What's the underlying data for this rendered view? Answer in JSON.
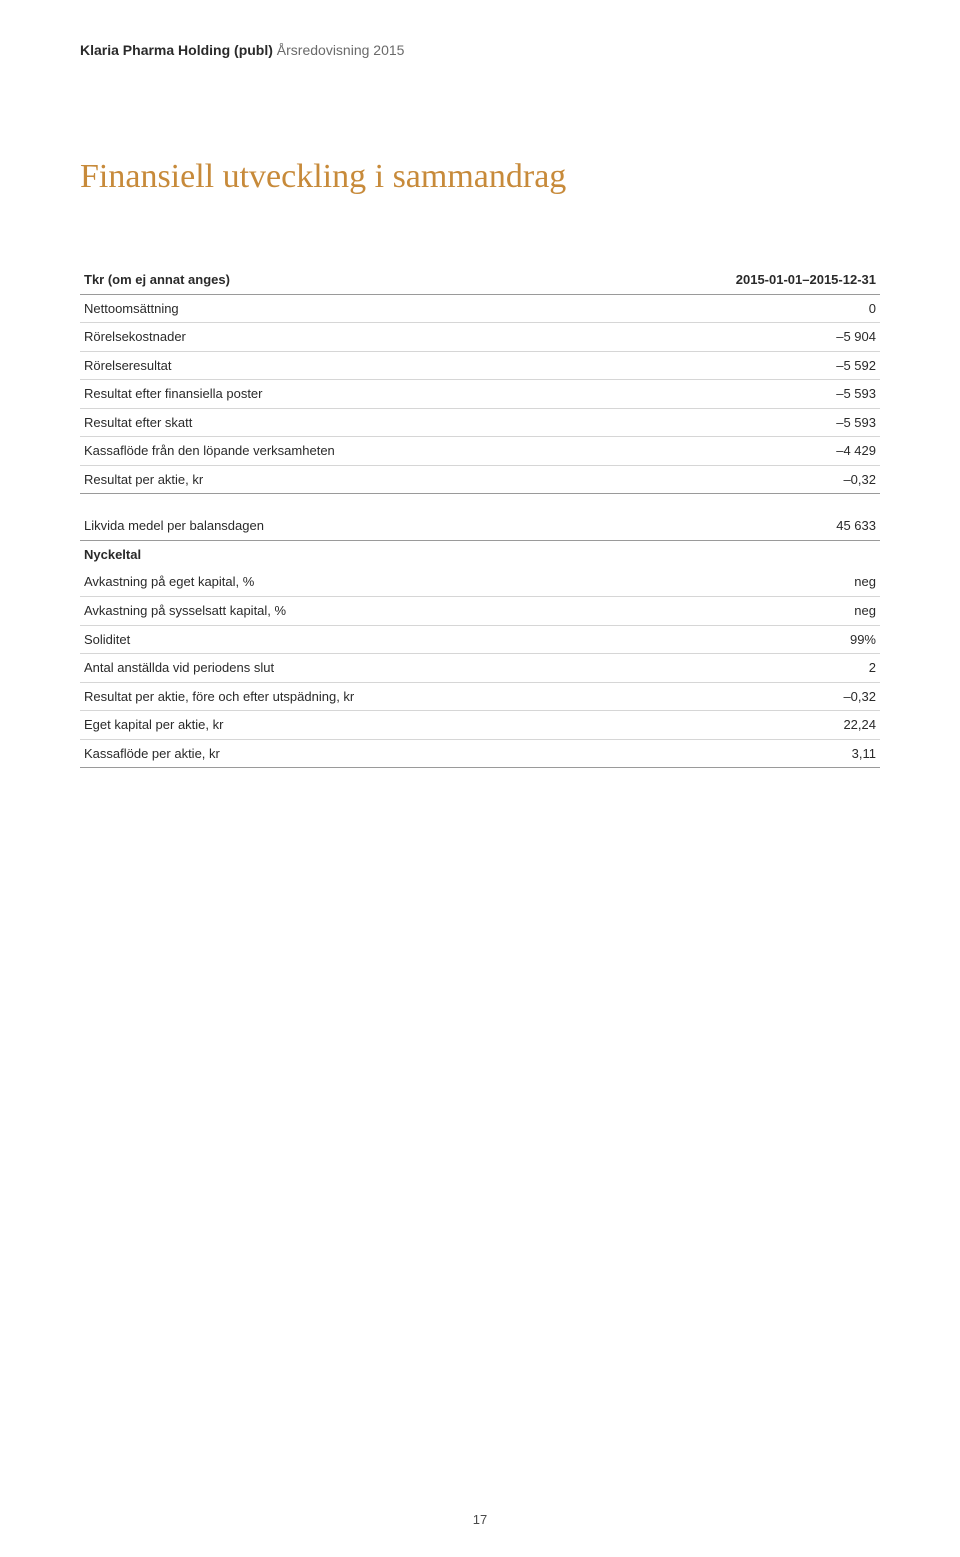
{
  "header": {
    "company": "Klaria Pharma Holding (publ)",
    "subtitle": "Årsredovisning 2015"
  },
  "title": {
    "text": "Finansiell utveckling i sammandrag",
    "color": "#c78a3a",
    "fontsize": 34
  },
  "table1": {
    "header_label": "Tkr (om ej annat anges)",
    "header_value": "2015-01-01–2015-12-31",
    "rows": [
      {
        "label": "Nettoomsättning",
        "value": "0"
      },
      {
        "label": "Rörelsekostnader",
        "value": "–5 904"
      },
      {
        "label": "Rörelseresultat",
        "value": "–5 592"
      },
      {
        "label": "Resultat efter finansiella poster",
        "value": "–5 593"
      },
      {
        "label": "Resultat efter skatt",
        "value": "–5 593"
      },
      {
        "label": "Kassaflöde från den löpande verksamheten",
        "value": "–4 429"
      },
      {
        "label": "Resultat per aktie, kr",
        "value": "–0,32"
      }
    ]
  },
  "table2": {
    "rows": [
      {
        "label": "Likvida medel per balansdagen",
        "value": "45 633"
      }
    ]
  },
  "table3": {
    "subhead": "Nyckeltal",
    "rows": [
      {
        "label": "Avkastning på eget kapital, %",
        "value": "neg"
      },
      {
        "label": "Avkastning på sysselsatt kapital, %",
        "value": "neg"
      },
      {
        "label": "Soliditet",
        "value": "99%"
      },
      {
        "label": "Antal anställda vid periodens slut",
        "value": "2"
      },
      {
        "label": "Resultat per aktie, före och efter utspädning, kr",
        "value": "–0,32"
      },
      {
        "label": "Eget kapital per aktie, kr",
        "value": "22,24"
      },
      {
        "label": "Kassaflöde per aktie, kr",
        "value": "3,11"
      }
    ]
  },
  "page_number": "17",
  "colors": {
    "rule_dark": "#9a9a9a",
    "rule_light": "#d6d6d6",
    "text": "#2a2a2a"
  }
}
